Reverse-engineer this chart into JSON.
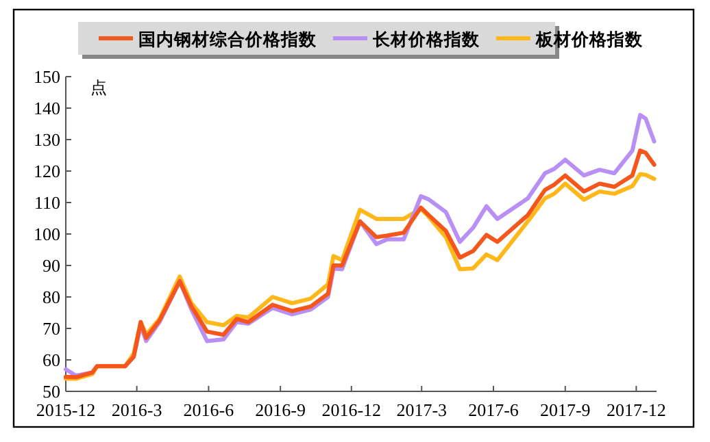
{
  "chart_data": {
    "type": "line",
    "x": [
      "2015-12-01",
      "2015-12-14",
      "2016-01-04",
      "2016-01-10",
      "2016-01-22",
      "2016-02-15",
      "2016-02-26",
      "2016-03-06",
      "2016-03-13",
      "2016-03-30",
      "2016-04-25",
      "2016-05-10",
      "2016-05-30",
      "2016-06-20",
      "2016-07-07",
      "2016-07-22",
      "2016-08-22",
      "2016-09-16",
      "2016-10-10",
      "2016-11-01",
      "2016-11-08",
      "2016-11-19",
      "2016-12-12",
      "2017-01-02",
      "2017-01-16",
      "2017-02-06",
      "2017-02-28",
      "2017-03-10",
      "2017-04-01",
      "2017-04-19",
      "2017-05-06",
      "2017-05-23",
      "2017-06-06",
      "2017-07-15",
      "2017-08-06",
      "2017-08-18",
      "2017-09-01",
      "2017-09-25",
      "2017-10-15",
      "2017-11-03",
      "2017-11-26",
      "2017-12-06",
      "2017-12-13",
      "2017-12-24"
    ],
    "series": [
      {
        "name": "国内钢材综合价格指数",
        "color": "#f4561c",
        "values": [
          54.6,
          54.5,
          56,
          58,
          58,
          58,
          61,
          72,
          67,
          72.5,
          85,
          77,
          69,
          68,
          73,
          72,
          77.5,
          75.5,
          77,
          81,
          90,
          90,
          104,
          99,
          99.5,
          100.4,
          108.4,
          106,
          101,
          92.5,
          94.6,
          99.7,
          97.5,
          106,
          114,
          115.7,
          118.6,
          113.5,
          116,
          115,
          118.6,
          126.5,
          125.8,
          122
        ]
      },
      {
        "name": "长材价格指数",
        "color": "#b890f5",
        "values": [
          57,
          55,
          56,
          null,
          null,
          58,
          61,
          71,
          66,
          72,
          85,
          76,
          66,
          66.5,
          72,
          71.5,
          76.5,
          74.5,
          76,
          80,
          89,
          88.8,
          104,
          96.8,
          98.3,
          98.3,
          112,
          111,
          107,
          97.5,
          102,
          108.8,
          104.8,
          111.3,
          119.3,
          120.7,
          123.6,
          118.6,
          120.4,
          119.3,
          126.5,
          137.8,
          136.7,
          129.4
        ]
      },
      {
        "name": "板材价格指数",
        "color": "#ffb81c",
        "values": [
          54,
          54,
          55.5,
          58,
          58,
          58,
          62,
          72,
          68,
          73,
          86.5,
          78,
          72,
          71,
          74,
          73.5,
          80,
          78,
          79.5,
          84,
          93,
          91.7,
          107.7,
          104.8,
          104.8,
          104.8,
          108,
          105.5,
          99,
          88.8,
          89.1,
          93.5,
          91.7,
          104,
          111.3,
          112.8,
          116,
          110.9,
          113.5,
          112.8,
          115.2,
          119,
          118.8,
          117.5
        ]
      }
    ],
    "ylabel": "点",
    "xlim": [
      "2015-12",
      "2017-12-27"
    ],
    "xticks": [
      "2015-12",
      {
        "value": "2016-03",
        "label": "2016-3"
      },
      {
        "value": "2016-06",
        "label": "2016-6"
      },
      {
        "value": "2016-09",
        "label": "2016-9"
      },
      "2016-12",
      {
        "value": "2017-03",
        "label": "2017-3"
      },
      {
        "value": "2017-06",
        "label": "2017-6"
      },
      {
        "value": "2017-09",
        "label": "2017-9"
      },
      "2017-12"
    ],
    "ylim": [
      50,
      150
    ],
    "yticks": [
      50,
      60,
      70,
      80,
      90,
      100,
      110,
      120,
      130,
      140,
      150
    ],
    "legend": "top",
    "grid": false,
    "marker": "none",
    "line_style": "solid"
  }
}
